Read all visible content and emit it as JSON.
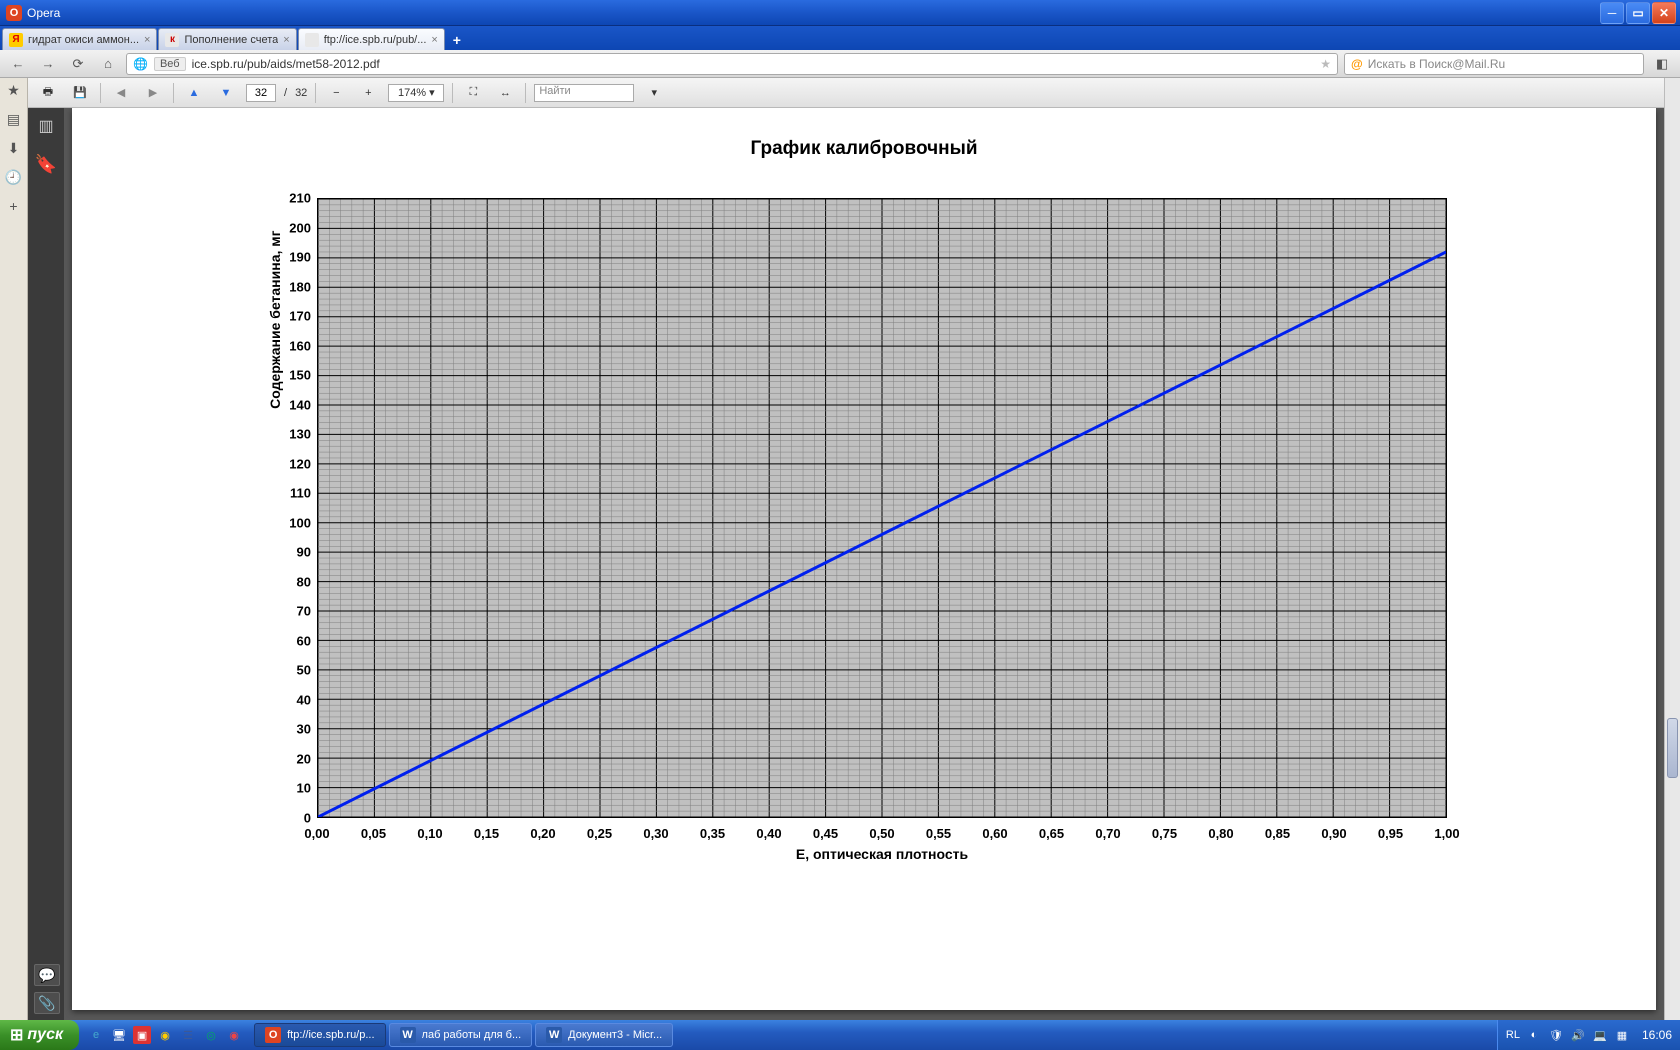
{
  "browser": {
    "app_label": "Opera",
    "tabs": [
      {
        "label": "гидрат окиси аммон...",
        "favicon_bg": "#ffcc00",
        "favicon_text": "Я",
        "favicon_color": "#d00"
      },
      {
        "label": "Пополнение счета",
        "favicon_bg": "#e8e8e8",
        "favicon_text": "к",
        "favicon_color": "#c00"
      },
      {
        "label": "ftp://ice.spb.ru/pub/...",
        "favicon_bg": "#e8e8e8",
        "favicon_text": "",
        "favicon_color": "#888",
        "active": true
      }
    ],
    "url_badge": "Веб",
    "url": "ice.spb.ru/pub/aids/met58-2012.pdf",
    "search_placeholder": "Искать в Поиск@Mail.Ru"
  },
  "pdf_toolbar": {
    "page_current": "32",
    "page_total": "32",
    "zoom": "174%",
    "find_placeholder": "Найти"
  },
  "chart": {
    "type": "line",
    "title": "График калибровочный",
    "x_axis_title": "Е, оптическая плотность",
    "y_axis_title": "Содержание бетанина, мг",
    "xlim": [
      0,
      1.0
    ],
    "ylim": [
      0,
      210
    ],
    "x_ticks": [
      "0,00",
      "0,05",
      "0,10",
      "0,15",
      "0,20",
      "0,25",
      "0,30",
      "0,35",
      "0,40",
      "0,45",
      "0,50",
      "0,55",
      "0,60",
      "0,65",
      "0,70",
      "0,75",
      "0,80",
      "0,85",
      "0,90",
      "0,95",
      "1,00"
    ],
    "y_ticks": [
      0,
      10,
      20,
      30,
      40,
      50,
      60,
      70,
      80,
      90,
      100,
      110,
      120,
      130,
      140,
      150,
      160,
      170,
      180,
      190,
      200,
      210
    ],
    "x_minor_divisions": 5,
    "y_minor_divisions": 5,
    "line_color": "#0020ee",
    "line_width": 3,
    "grid_bg": "#c0c0c0",
    "grid_minor_color": "#808080",
    "grid_major_color": "#000000",
    "data_points": [
      [
        0.0,
        0
      ],
      [
        1.0,
        192
      ]
    ],
    "title_fontsize": 19,
    "label_fontsize": 13,
    "axis_title_fontsize": 14
  },
  "taskbar": {
    "start_label": "пуск",
    "tasks": [
      {
        "label": "ftp://ice.spb.ru/p...",
        "icon_bg": "#d42",
        "icon_text": "O",
        "active": true
      },
      {
        "label": "лаб работы для б...",
        "icon_bg": "#2a5aaa",
        "icon_text": "W"
      },
      {
        "label": "Документ3 - Micr...",
        "icon_bg": "#2a5aaa",
        "icon_text": "W"
      }
    ],
    "lang": "RL",
    "clock": "16:06"
  }
}
